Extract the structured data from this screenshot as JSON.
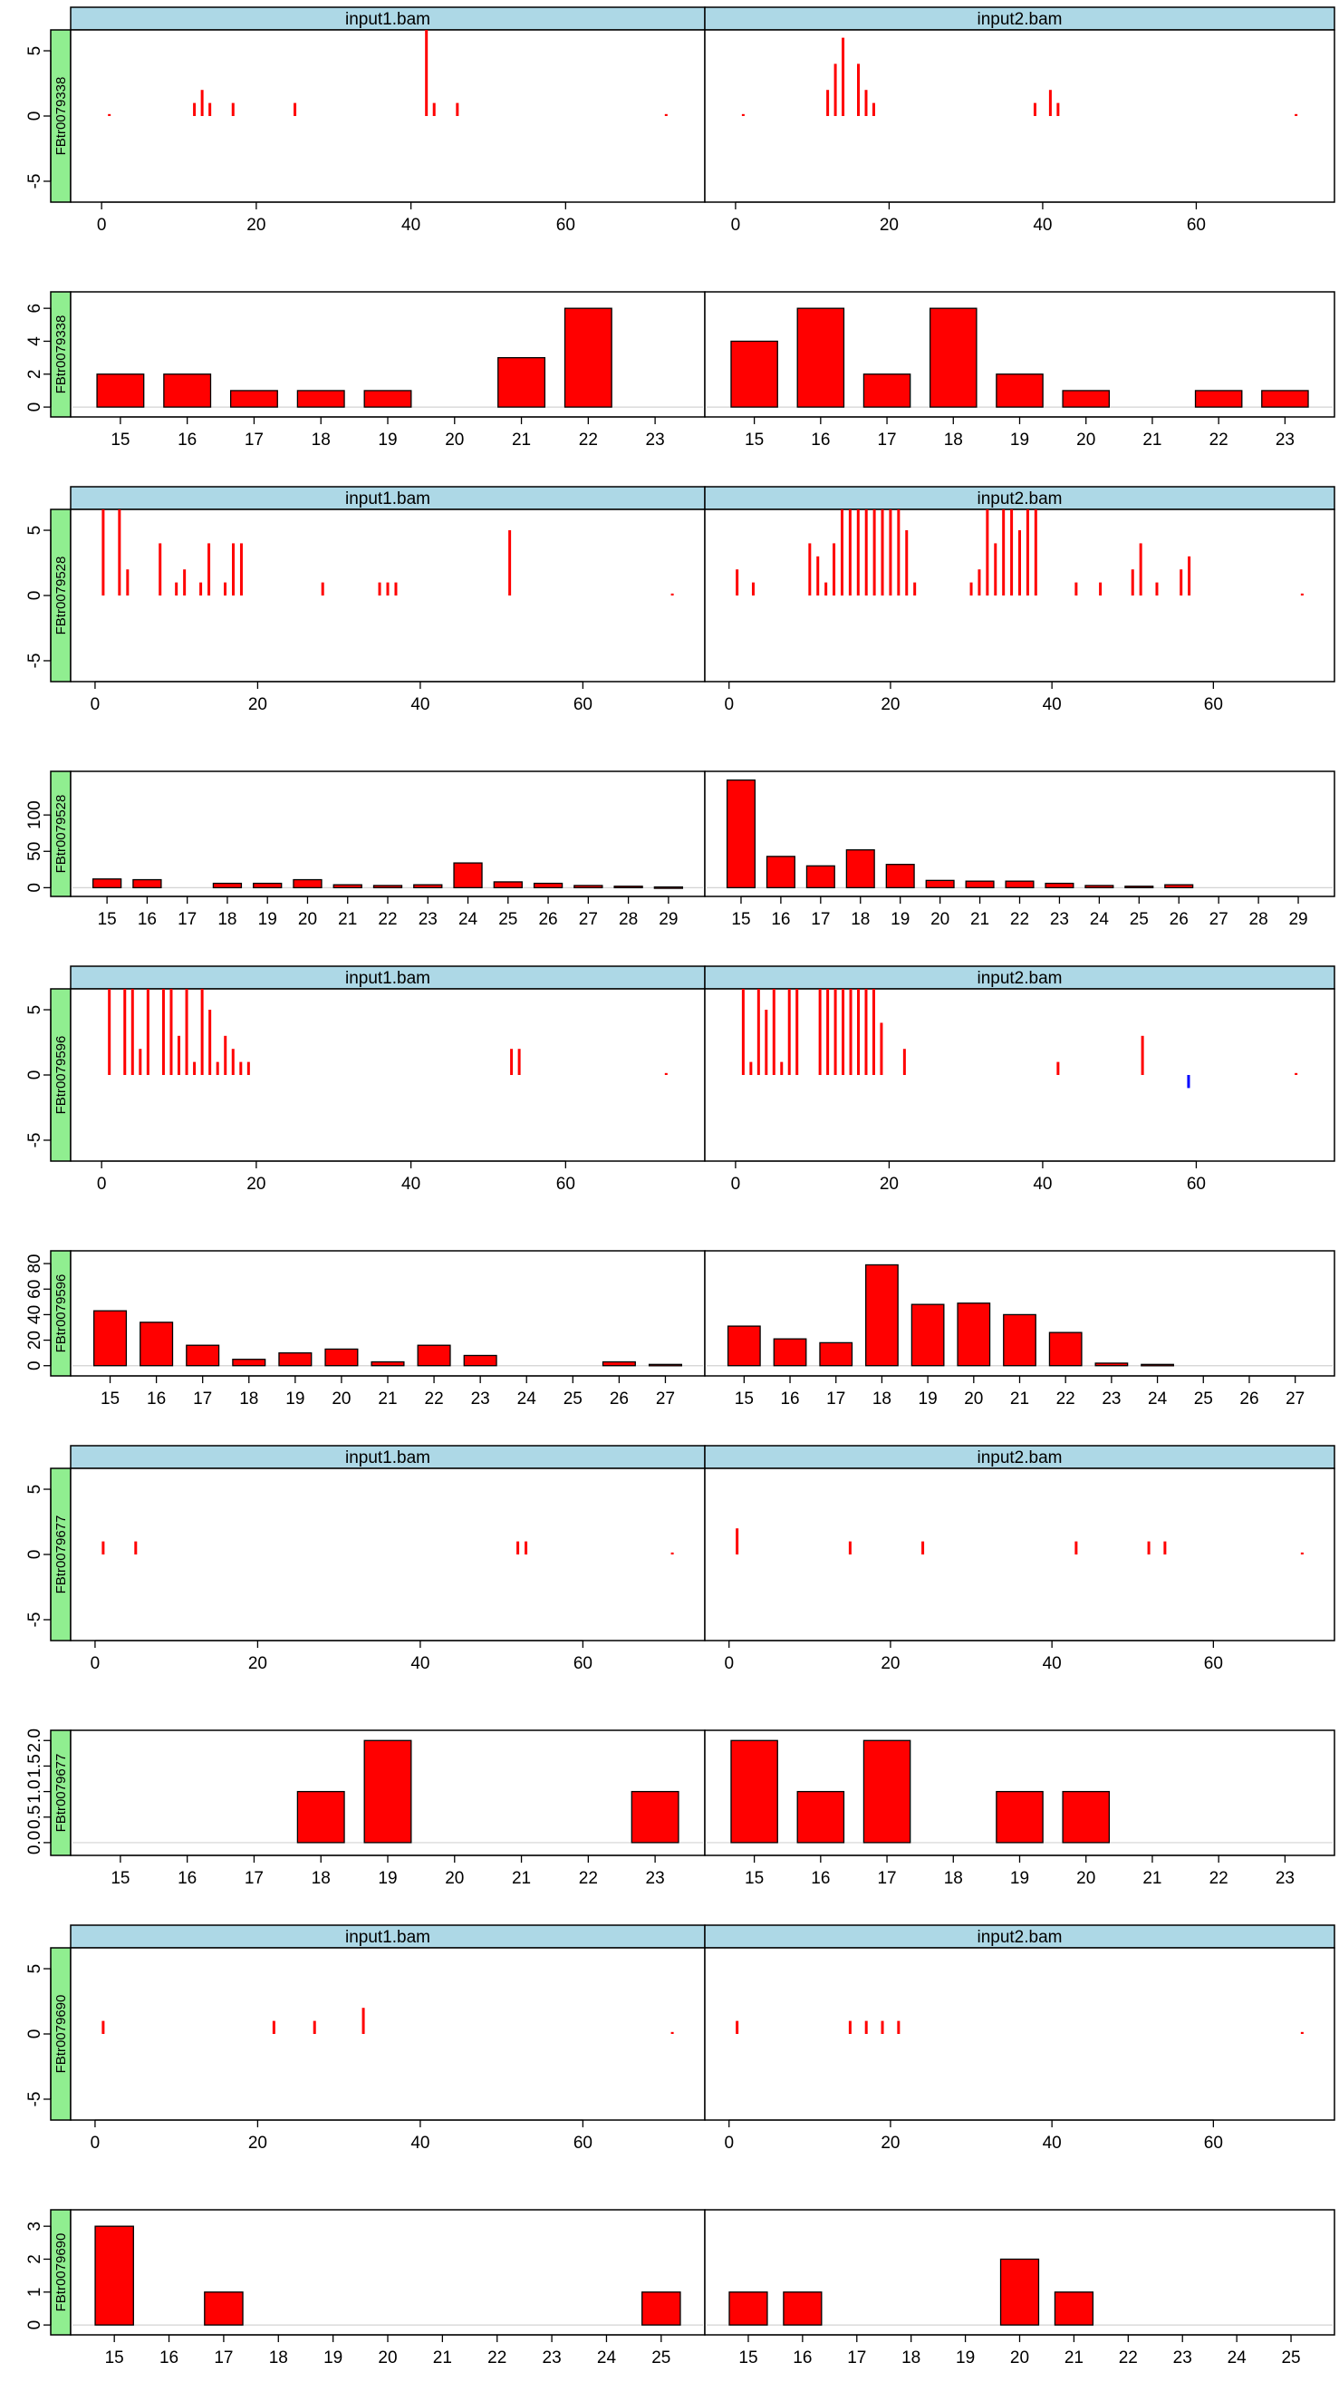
{
  "colors": {
    "strip": "#add8e6",
    "row_strip": "#90ee90",
    "bar": "#ff0000",
    "positive_signal": "#ff0000",
    "negative_signal": "#0000ff",
    "zero_line": "#d3d3d3",
    "frame": "#000000"
  },
  "samples": [
    "input1.bam",
    "input2.bam"
  ],
  "chart_data": [
    {
      "type": "bar",
      "kind": "signal",
      "row_label": "FBtr0079338",
      "xlim": [
        -4,
        78
      ],
      "ylim": [
        -6.6,
        6.6
      ],
      "xticks": [
        0,
        20,
        40,
        60
      ],
      "yticks": [
        -5,
        0,
        5
      ],
      "panels": [
        {
          "x": [
            1,
            12,
            13,
            14,
            17,
            25,
            42,
            43,
            46,
            73
          ],
          "y": [
            0.15,
            1,
            2,
            1,
            1,
            1,
            6.6,
            1,
            1,
            0.15
          ]
        },
        {
          "x": [
            1,
            12,
            13,
            14,
            16,
            17,
            18,
            39,
            41,
            42,
            73
          ],
          "y": [
            0.15,
            2,
            4,
            6,
            4,
            2,
            1,
            1,
            2,
            1,
            0.15
          ]
        }
      ]
    },
    {
      "type": "bar",
      "kind": "length",
      "row_label": "FBtr0079338",
      "categories": [
        "15",
        "16",
        "17",
        "18",
        "19",
        "20",
        "21",
        "22",
        "23"
      ],
      "ylim": [
        -0.6,
        7
      ],
      "yticks": [
        0,
        2,
        4,
        6
      ],
      "panels": [
        {
          "values": [
            2,
            2,
            1,
            1,
            1,
            0,
            3,
            6,
            0
          ]
        },
        {
          "values": [
            4,
            6,
            2,
            6,
            2,
            1,
            0,
            1,
            1
          ]
        }
      ]
    },
    {
      "type": "bar",
      "kind": "signal",
      "row_label": "FBtr0079528",
      "xlim": [
        -3,
        75
      ],
      "ylim": [
        -6.6,
        6.6
      ],
      "xticks": [
        0,
        20,
        40,
        60
      ],
      "yticks": [
        -5,
        0,
        5
      ],
      "panels": [
        {
          "x": [
            1,
            3,
            4,
            8,
            10,
            11,
            13,
            14,
            16,
            17,
            18,
            28,
            35,
            36,
            37,
            51,
            71
          ],
          "y": [
            6.6,
            6.6,
            2,
            4,
            1,
            2,
            1,
            4,
            1,
            4,
            4,
            1,
            1,
            1,
            1,
            5,
            0.15
          ]
        },
        {
          "x": [
            1,
            3,
            10,
            11,
            12,
            13,
            14,
            15,
            16,
            17,
            18,
            19,
            20,
            21,
            22,
            23,
            30,
            31,
            32,
            33,
            34,
            35,
            36,
            37,
            38,
            43,
            46,
            50,
            51,
            53,
            56,
            57,
            71
          ],
          "y": [
            2,
            1,
            4,
            3,
            1,
            4,
            6.6,
            6.6,
            6.6,
            6.6,
            6.6,
            6.6,
            6.6,
            6.6,
            5,
            1,
            1,
            2,
            6.6,
            4,
            6.6,
            6.6,
            5,
            6.6,
            6.6,
            1,
            1,
            2,
            4,
            1,
            2,
            3,
            0.15
          ]
        }
      ]
    },
    {
      "type": "bar",
      "kind": "length",
      "row_label": "FBtr0079528",
      "categories": [
        "15",
        "16",
        "17",
        "18",
        "19",
        "20",
        "21",
        "22",
        "23",
        "24",
        "25",
        "26",
        "27",
        "28",
        "29"
      ],
      "ylim": [
        -12,
        160
      ],
      "yticks": [
        0,
        50,
        100
      ],
      "panels": [
        {
          "values": [
            12,
            11,
            0,
            6,
            6,
            11,
            4,
            3,
            4,
            34,
            8,
            6,
            3,
            2,
            1
          ]
        },
        {
          "values": [
            148,
            43,
            30,
            52,
            32,
            10,
            9,
            9,
            6,
            3,
            2,
            4,
            0,
            0,
            0
          ]
        }
      ]
    },
    {
      "type": "bar",
      "kind": "signal",
      "row_label": "FBtr0079596",
      "xlim": [
        -4,
        78
      ],
      "ylim": [
        -6.6,
        6.6
      ],
      "xticks": [
        0,
        20,
        40,
        60
      ],
      "yticks": [
        -5,
        0,
        5
      ],
      "panels": [
        {
          "x": [
            1,
            3,
            4,
            5,
            6,
            8,
            9,
            10,
            11,
            12,
            13,
            14,
            15,
            16,
            17,
            18,
            19,
            53,
            54,
            73
          ],
          "y": [
            6.6,
            6.6,
            6.6,
            2,
            6.6,
            6.6,
            6.6,
            3,
            6.6,
            1,
            6.6,
            5,
            1,
            3,
            2,
            1,
            1,
            2,
            2,
            0.15
          ]
        },
        {
          "x": [
            1,
            2,
            3,
            4,
            5,
            6,
            7,
            8,
            11,
            12,
            13,
            14,
            15,
            16,
            17,
            18,
            19,
            22,
            42,
            53,
            59,
            73
          ],
          "y": [
            6.6,
            1,
            6.6,
            5,
            6.6,
            1,
            6.6,
            6.6,
            6.6,
            6.6,
            6.6,
            6.6,
            6.6,
            6.6,
            6.6,
            6.6,
            4,
            2,
            1,
            3,
            -1,
            0.15
          ]
        }
      ]
    },
    {
      "type": "bar",
      "kind": "length",
      "row_label": "FBtr0079596",
      "categories": [
        "15",
        "16",
        "17",
        "18",
        "19",
        "20",
        "21",
        "22",
        "23",
        "24",
        "25",
        "26",
        "27"
      ],
      "ylim": [
        -8,
        90
      ],
      "yticks": [
        0,
        20,
        40,
        60,
        80
      ],
      "panels": [
        {
          "values": [
            43,
            34,
            16,
            5,
            10,
            13,
            3,
            16,
            8,
            0,
            0,
            3,
            1
          ]
        },
        {
          "values": [
            31,
            21,
            18,
            79,
            48,
            49,
            40,
            26,
            2,
            1,
            0,
            0,
            0
          ]
        }
      ]
    },
    {
      "type": "bar",
      "kind": "signal",
      "row_label": "FBtr0079677",
      "xlim": [
        -3,
        75
      ],
      "ylim": [
        -6.6,
        6.6
      ],
      "xticks": [
        0,
        20,
        40,
        60
      ],
      "yticks": [
        -5,
        0,
        5
      ],
      "panels": [
        {
          "x": [
            1,
            5,
            52,
            53,
            71
          ],
          "y": [
            1,
            1,
            1,
            1,
            0.15
          ]
        },
        {
          "x": [
            1,
            15,
            24,
            43,
            52,
            54,
            71
          ],
          "y": [
            2,
            1,
            1,
            1,
            1,
            1,
            0.15
          ]
        }
      ]
    },
    {
      "type": "bar",
      "kind": "length",
      "row_label": "FBtr0079677",
      "categories": [
        "15",
        "16",
        "17",
        "18",
        "19",
        "20",
        "21",
        "22",
        "23"
      ],
      "ylim": [
        -0.25,
        2.2
      ],
      "yticks": [
        "0.0",
        "0.5",
        "1.0",
        "1.5",
        "2.0"
      ],
      "panels": [
        {
          "values": [
            0,
            0,
            0,
            1,
            2,
            0,
            0,
            0,
            1
          ]
        },
        {
          "values": [
            2,
            1,
            2,
            0,
            1,
            1,
            0,
            0,
            0
          ]
        }
      ]
    },
    {
      "type": "bar",
      "kind": "signal",
      "row_label": "FBtr0079690",
      "xlim": [
        -3,
        75
      ],
      "ylim": [
        -6.6,
        6.6
      ],
      "xticks": [
        0,
        20,
        40,
        60
      ],
      "yticks": [
        -5,
        0,
        5
      ],
      "panels": [
        {
          "x": [
            1,
            22,
            27,
            33,
            71
          ],
          "y": [
            1,
            1,
            1,
            2,
            0.15
          ]
        },
        {
          "x": [
            1,
            15,
            17,
            19,
            21,
            71
          ],
          "y": [
            1,
            1,
            1,
            1,
            1,
            0.15
          ]
        }
      ]
    },
    {
      "type": "bar",
      "kind": "length",
      "row_label": "FBtr0079690",
      "categories": [
        "15",
        "16",
        "17",
        "18",
        "19",
        "20",
        "21",
        "22",
        "23",
        "24",
        "25"
      ],
      "ylim": [
        -0.3,
        3.5
      ],
      "yticks": [
        0,
        1,
        2,
        3
      ],
      "panels": [
        {
          "values": [
            3,
            0,
            1,
            0,
            0,
            0,
            0,
            0,
            0,
            0,
            1
          ]
        },
        {
          "values": [
            1,
            1,
            0,
            0,
            0,
            2,
            1,
            0,
            0,
            0,
            0
          ]
        }
      ]
    }
  ]
}
